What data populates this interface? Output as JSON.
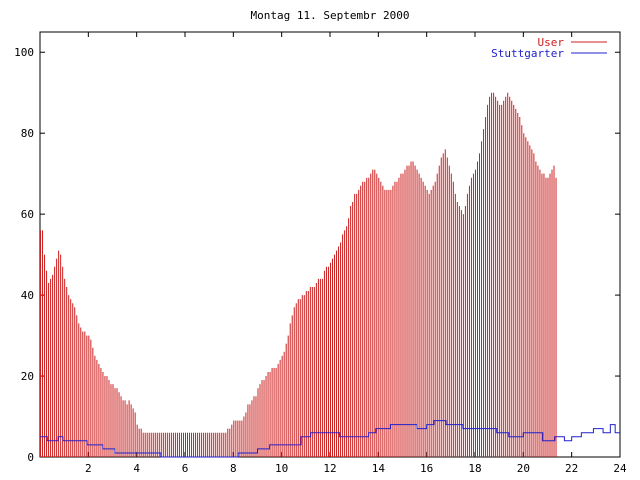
{
  "chart_data": {
    "type": "bar",
    "title": "Montag 11. Septembr 2000",
    "xlabel": "",
    "ylabel": "",
    "xlim": [
      0,
      24
    ],
    "ylim": [
      0,
      105
    ],
    "x_ticks": [
      2,
      4,
      6,
      8,
      10,
      12,
      14,
      16,
      18,
      20,
      22,
      24
    ],
    "y_ticks": [
      0,
      20,
      40,
      60,
      80,
      100
    ],
    "grid": false,
    "legend_position": "top-right",
    "series": [
      {
        "name": "User",
        "style": "impulses",
        "color": "#cc2020",
        "x_step_hours": 0.08333,
        "values": [
          56,
          56,
          50,
          46,
          43,
          44,
          45,
          47,
          49,
          51,
          50,
          47,
          44,
          42,
          40,
          39,
          38,
          37,
          35,
          33,
          32,
          31,
          31,
          30,
          30,
          29,
          27,
          25,
          24,
          23,
          22,
          21,
          20,
          20,
          19,
          18,
          18,
          17,
          17,
          16,
          15,
          14,
          14,
          13,
          14,
          13,
          12,
          11,
          8,
          7,
          7,
          6,
          6,
          6,
          6,
          6,
          6,
          6,
          6,
          6,
          6,
          6,
          6,
          6,
          6,
          6,
          6,
          6,
          6,
          6,
          6,
          6,
          6,
          6,
          6,
          6,
          6,
          6,
          6,
          6,
          6,
          6,
          6,
          6,
          6,
          6,
          6,
          6,
          6,
          6,
          6,
          6,
          6,
          7,
          7,
          8,
          9,
          9,
          9,
          9,
          9,
          10,
          11,
          13,
          13,
          14,
          15,
          15,
          17,
          18,
          19,
          19,
          20,
          21,
          21,
          22,
          22,
          22,
          23,
          24,
          25,
          26,
          28,
          30,
          33,
          35,
          37,
          38,
          39,
          39,
          40,
          40,
          41,
          41,
          42,
          42,
          42,
          43,
          44,
          44,
          44,
          46,
          47,
          47,
          48,
          49,
          50,
          51,
          52,
          53,
          55,
          56,
          57,
          59,
          62,
          63,
          65,
          65,
          66,
          67,
          68,
          68,
          69,
          69,
          70,
          71,
          71,
          70,
          69,
          68,
          67,
          66,
          66,
          66,
          66,
          67,
          68,
          68,
          69,
          70,
          70,
          71,
          72,
          72,
          73,
          73,
          72,
          71,
          70,
          69,
          68,
          67,
          66,
          65,
          66,
          67,
          68,
          70,
          72,
          74,
          75,
          76,
          74,
          72,
          70,
          68,
          65,
          63,
          62,
          61,
          60,
          62,
          65,
          67,
          69,
          70,
          71,
          73,
          75,
          78,
          81,
          84,
          87,
          89,
          90,
          90,
          89,
          88,
          87,
          87,
          88,
          89,
          90,
          89,
          88,
          87,
          86,
          85,
          84,
          82,
          80,
          79,
          78,
          77,
          76,
          75,
          73,
          72,
          71,
          70,
          70,
          69,
          69,
          70,
          71,
          72,
          69
        ]
      },
      {
        "name": "Stuttgarter",
        "style": "step",
        "color": "#2020cc",
        "x": [
          0,
          0.3,
          0.75,
          0.95,
          1.95,
          2.6,
          3.1,
          5.0,
          8.2,
          9.0,
          9.5,
          10.8,
          11.2,
          12.0,
          12.4,
          13.6,
          13.9,
          14.5,
          15.0,
          15.6,
          16.0,
          16.3,
          16.8,
          17.5,
          18.9,
          19.4,
          20.0,
          20.8,
          21.3,
          21.7,
          22.0,
          22.4,
          22.9,
          23.3,
          23.6,
          23.8,
          24.0
        ],
        "values": [
          5,
          4,
          5,
          4,
          3,
          2,
          1,
          0,
          1,
          2,
          3,
          5,
          6,
          6,
          5,
          6,
          7,
          8,
          8,
          7,
          8,
          9,
          8,
          7,
          6,
          5,
          6,
          4,
          5,
          4,
          5,
          6,
          7,
          6,
          8,
          6,
          6
        ]
      }
    ]
  }
}
